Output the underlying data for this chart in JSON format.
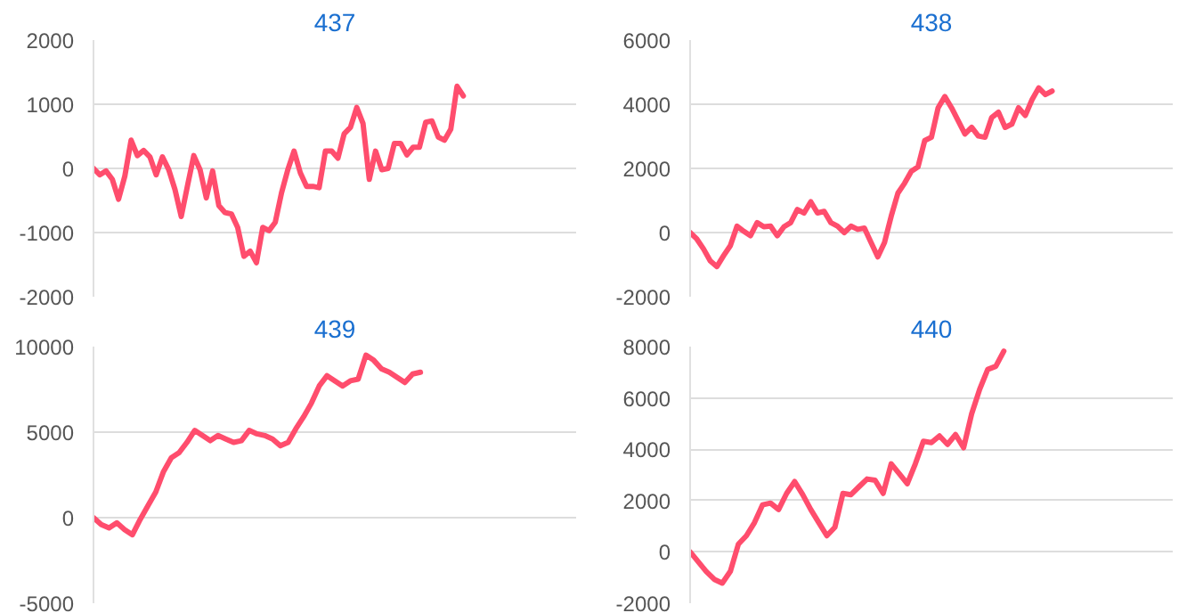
{
  "chart_data": [
    {
      "type": "line",
      "title": "437",
      "categories": [
        null,
        null,
        null,
        null,
        null,
        null,
        null,
        null,
        null,
        null,
        null,
        null,
        null,
        null,
        null,
        null,
        null,
        null,
        null,
        null,
        null,
        null,
        null,
        null,
        null,
        null,
        null,
        null,
        null,
        null,
        null,
        null,
        null,
        null,
        null,
        null,
        null,
        null,
        null,
        null,
        null,
        null,
        null,
        null,
        null,
        null,
        null,
        null,
        null,
        null,
        null,
        null,
        null,
        null,
        null,
        null,
        null,
        null,
        null,
        null,
        null,
        null,
        null,
        null,
        null,
        null,
        null,
        null,
        null,
        null,
        null,
        null,
        null,
        null,
        null,
        null,
        null,
        null
      ],
      "series": [
        {
          "color": "#ff4d6d",
          "values": [
            0,
            -100,
            -40,
            -170,
            -480,
            -120,
            440,
            200,
            280,
            180,
            -100,
            180,
            -20,
            -330,
            -750,
            -270,
            200,
            -20,
            -460,
            -40,
            -580,
            -690,
            -710,
            -920,
            -1370,
            -1290,
            -1470,
            -920,
            -970,
            -840,
            -380,
            -20,
            270,
            -70,
            -280,
            -280,
            -300,
            270,
            270,
            160,
            540,
            640,
            950,
            700,
            -170,
            270,
            -20,
            0,
            390,
            390,
            210,
            330,
            330,
            720,
            740,
            490,
            440,
            610,
            1280,
            1130,
            null,
            null,
            null,
            null,
            null,
            null,
            null,
            null,
            null,
            null,
            null,
            null,
            null,
            null,
            null,
            null,
            null,
            null
          ]
        }
      ],
      "ylim": [
        -2000,
        2000
      ],
      "yticks": [
        -2000,
        -1000,
        0,
        1000,
        2000
      ],
      "grid": "y",
      "tick_labels": "y",
      "marker": "none",
      "line_style": "solid"
    },
    {
      "type": "line",
      "title": "438",
      "categories": [
        null,
        null,
        null,
        null,
        null,
        null,
        null,
        null,
        null,
        null,
        null,
        null,
        null,
        null,
        null,
        null,
        null,
        null,
        null,
        null,
        null,
        null,
        null,
        null,
        null,
        null,
        null,
        null,
        null,
        null,
        null,
        null,
        null,
        null,
        null,
        null,
        null,
        null,
        null,
        null,
        null,
        null,
        null,
        null,
        null,
        null,
        null,
        null,
        null,
        null,
        null,
        null,
        null,
        null,
        null,
        null,
        null,
        null,
        null,
        null,
        null,
        null,
        null,
        null,
        null,
        null,
        null,
        null,
        null,
        null,
        null,
        null,
        null
      ],
      "series": [
        {
          "color": "#ff4d6d",
          "values": [
            0,
            -200,
            -510,
            -880,
            -1060,
            -720,
            -410,
            200,
            40,
            -100,
            310,
            180,
            200,
            -100,
            180,
            310,
            720,
            610,
            960,
            610,
            660,
            310,
            200,
            0,
            200,
            100,
            140,
            -310,
            -760,
            -310,
            510,
            1230,
            1540,
            1910,
            2050,
            2870,
            2970,
            3890,
            4240,
            3890,
            3480,
            3070,
            3280,
            3010,
            2970,
            3590,
            3750,
            3280,
            3380,
            3890,
            3650,
            4140,
            4510,
            4300,
            4410,
            null,
            null,
            null,
            null,
            null,
            null,
            null,
            null,
            null,
            null,
            null,
            null,
            null,
            null,
            null,
            null,
            null,
            null
          ]
        }
      ],
      "ylim": [
        -2000,
        6000
      ],
      "yticks": [
        -2000,
        0,
        2000,
        4000,
        6000
      ],
      "grid": "y",
      "tick_labels": "y",
      "marker": "none",
      "line_style": "solid"
    },
    {
      "type": "line",
      "title": "439",
      "categories": [
        null,
        null,
        null,
        null,
        null,
        null,
        null,
        null,
        null,
        null,
        null,
        null,
        null,
        null,
        null,
        null,
        null,
        null,
        null,
        null,
        null,
        null,
        null,
        null,
        null,
        null,
        null,
        null,
        null,
        null,
        null,
        null,
        null,
        null,
        null,
        null,
        null,
        null,
        null,
        null,
        null,
        null,
        null,
        null,
        null,
        null,
        null,
        null,
        null,
        null,
        null,
        null,
        null,
        null,
        null,
        null,
        null,
        null,
        null,
        null,
        null,
        null,
        null
      ],
      "series": [
        {
          "color": "#ff4d6d",
          "values": [
            0,
            -400,
            -600,
            -300,
            -700,
            -1000,
            -100,
            700,
            1500,
            2700,
            3500,
            3800,
            4400,
            5100,
            4800,
            4500,
            4800,
            4600,
            4400,
            4500,
            5100,
            4900,
            4800,
            4600,
            4200,
            4400,
            5200,
            5900,
            6700,
            7700,
            8300,
            8000,
            7700,
            8000,
            8100,
            9500,
            9200,
            8700,
            8500,
            8200,
            7900,
            8400,
            8500,
            null,
            null,
            null,
            null,
            null,
            null,
            null,
            null,
            null,
            null,
            null,
            null,
            null,
            null,
            null,
            null,
            null,
            null,
            null,
            null
          ]
        }
      ],
      "ylim": [
        -5000,
        10000
      ],
      "yticks": [
        -5000,
        0,
        5000,
        10000
      ],
      "grid": "y",
      "tick_labels": "y",
      "marker": "none",
      "line_style": "solid"
    },
    {
      "type": "line",
      "title": "440",
      "categories": [
        null,
        null,
        null,
        null,
        null,
        null,
        null,
        null,
        null,
        null,
        null,
        null,
        null,
        null,
        null,
        null,
        null,
        null,
        null,
        null,
        null,
        null,
        null,
        null,
        null,
        null,
        null,
        null,
        null,
        null,
        null,
        null,
        null,
        null,
        null,
        null,
        null,
        null,
        null,
        null,
        null,
        null,
        null,
        null,
        null,
        null,
        null,
        null,
        null,
        null,
        null,
        null,
        null,
        null,
        null,
        null,
        null,
        null,
        null,
        null,
        null
      ],
      "series": [
        {
          "color": "#ff4d6d",
          "values": [
            0,
            -380,
            -760,
            -1070,
            -1220,
            -760,
            300,
            630,
            1140,
            1830,
            1900,
            1650,
            2280,
            2740,
            2230,
            1650,
            1140,
            630,
            960,
            2280,
            2230,
            2540,
            2840,
            2790,
            2280,
            3430,
            3050,
            2660,
            3430,
            4310,
            4260,
            4520,
            4190,
            4570,
            4060,
            5380,
            6340,
            7110,
            7230,
            7820,
            null,
            null,
            null,
            null,
            null,
            null,
            null,
            null,
            null,
            null,
            null,
            null,
            null,
            null,
            null,
            null,
            null,
            null,
            null,
            null,
            null
          ]
        }
      ],
      "ylim": [
        -2000,
        8000
      ],
      "yticks": [
        -2000,
        0,
        2000,
        4000,
        6000,
        8000
      ],
      "grid": "y",
      "tick_labels": "y",
      "marker": "none",
      "line_style": "solid"
    }
  ]
}
